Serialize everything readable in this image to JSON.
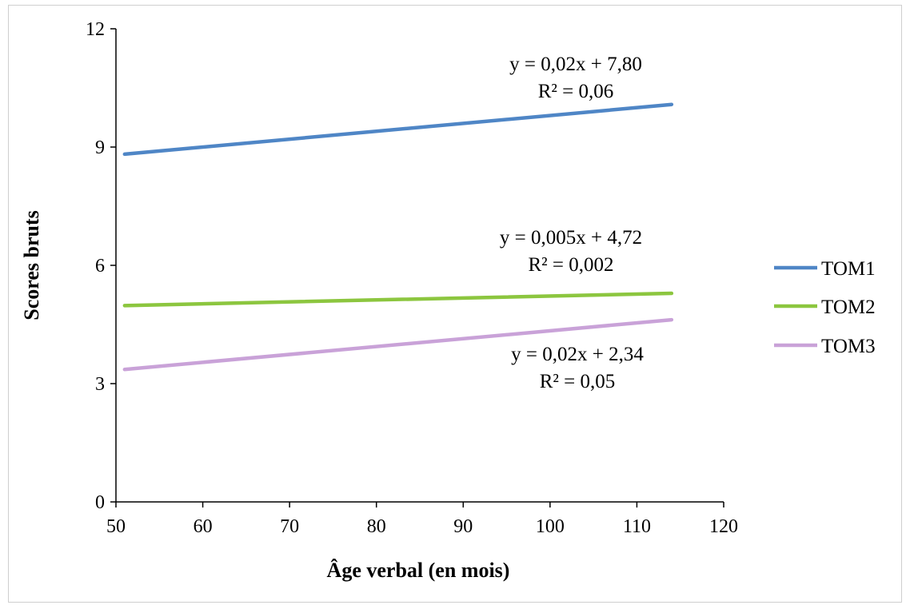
{
  "chart_data": {
    "type": "line",
    "title": "",
    "xlabel": "Âge verbal (en mois)",
    "ylabel": "Scores bruts",
    "xlim": [
      50,
      120
    ],
    "ylim": [
      0,
      12
    ],
    "xticks": [
      50,
      60,
      70,
      80,
      90,
      100,
      110,
      120
    ],
    "yticks": [
      0,
      3,
      6,
      9,
      12
    ],
    "grid": false,
    "legend_position": "right",
    "series": [
      {
        "name": "TOM1",
        "color": "#4f86c6",
        "x": [
          51,
          114
        ],
        "y": [
          8.82,
          10.08
        ],
        "equation": "y = 0,02x + 7,80",
        "r2": "R² = 0,06"
      },
      {
        "name": "TOM2",
        "color": "#8cc63f",
        "x": [
          51,
          114
        ],
        "y": [
          4.98,
          5.29
        ],
        "equation": "y = 0,005x + 4,72",
        "r2": "R² = 0,002"
      },
      {
        "name": "TOM3",
        "color": "#c9a2d8",
        "x": [
          51,
          114
        ],
        "y": [
          3.36,
          4.62
        ],
        "equation": "y = 0,02x + 2,34",
        "r2": "R² = 0,05"
      }
    ]
  }
}
